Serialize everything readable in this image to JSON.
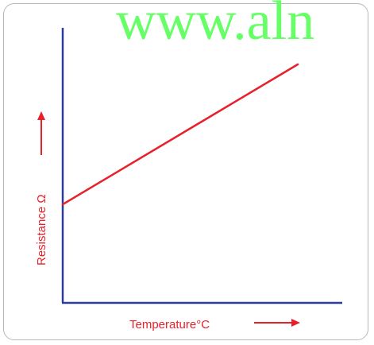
{
  "watermark": "www.aln",
  "chart_data": {
    "type": "line",
    "title": "",
    "xlabel": "Temperature°C",
    "ylabel": "Resistance Ω",
    "x_ticks": [],
    "y_ticks": [],
    "xlim": [
      0,
      100
    ],
    "ylim": [
      0,
      100
    ],
    "grid": false,
    "legend": "none",
    "series": [
      {
        "x": [
          0,
          100
        ],
        "y": [
          35.5,
          100
        ]
      }
    ],
    "colors": {
      "line": "#e8202a",
      "axes": "#2b3d9a",
      "label": "#e8202a",
      "frame": "#b8b8b8",
      "watermark": "#66ff66"
    }
  }
}
